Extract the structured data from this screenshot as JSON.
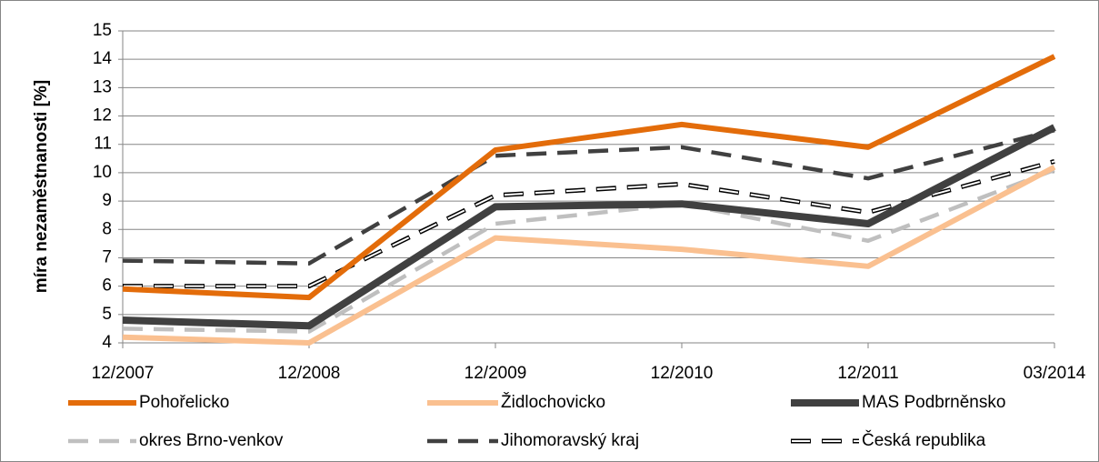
{
  "chart_data": {
    "type": "line",
    "y_label": "míra nezaměstnanosti [%]",
    "categories": [
      "12/2007",
      "12/2008",
      "12/2009",
      "12/2010",
      "12/2011",
      "03/2014"
    ],
    "series": [
      {
        "name": "Pohořelicko",
        "color": "#e36c0a",
        "style": "solid",
        "values": [
          5.9,
          5.6,
          10.8,
          11.7,
          10.9,
          14.1
        ]
      },
      {
        "name": "Židlochovicko",
        "color": "#fac090",
        "style": "solid",
        "values": [
          4.2,
          4.0,
          7.7,
          7.3,
          6.7,
          10.2
        ]
      },
      {
        "name": "MAS Podbrněnsko",
        "color": "#404040",
        "style": "solid",
        "values": [
          4.8,
          4.6,
          8.8,
          8.9,
          8.2,
          11.6
        ]
      },
      {
        "name": "okres Brno-venkov",
        "color": "#bfbfbf",
        "style": "dashed",
        "values": [
          4.5,
          4.4,
          8.2,
          8.9,
          7.6,
          10.1
        ]
      },
      {
        "name": "Jihomoravský kraj",
        "color": "#404040",
        "style": "dashed",
        "values": [
          6.9,
          6.8,
          10.6,
          10.9,
          9.8,
          11.5
        ]
      },
      {
        "name": "Česká republika",
        "color": "#ffffff",
        "style": "dashed-outline",
        "values": [
          6.0,
          6.0,
          9.2,
          9.6,
          8.6,
          10.4
        ]
      }
    ],
    "ylim": [
      4,
      15
    ],
    "yticks": [
      4,
      5,
      6,
      7,
      8,
      9,
      10,
      11,
      12,
      13,
      14,
      15
    ],
    "grid": true
  }
}
